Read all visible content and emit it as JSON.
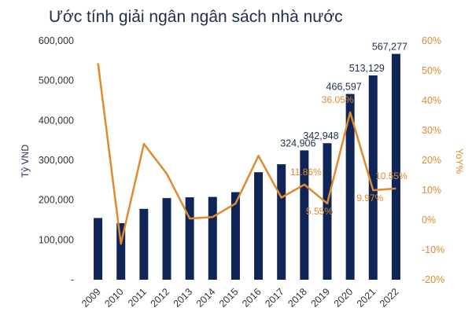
{
  "chart_data": {
    "type": "bar",
    "title": "Ước tính giải ngân ngân sách nhà nước",
    "categories": [
      "2009",
      "2010",
      "2011",
      "2012",
      "2013",
      "2014",
      "2015",
      "2016",
      "2017",
      "2018",
      "2019",
      "2020",
      "2021",
      "2022"
    ],
    "series": [
      {
        "name": "Tỷ VND",
        "type": "bar",
        "axis": "left",
        "color": "#0f2457",
        "values": [
          155000,
          142000,
          178000,
          205000,
          207000,
          208000,
          220000,
          270000,
          290000,
          324906,
          342948,
          466597,
          513129,
          567277
        ]
      },
      {
        "name": "YoY%",
        "type": "line",
        "axis": "right",
        "color": "#e08a2e",
        "values": [
          52.5,
          -8.0,
          25.5,
          15.5,
          0.5,
          1.0,
          5.5,
          21.5,
          7.5,
          11.86,
          5.55,
          36.05,
          9.97,
          10.55
        ]
      }
    ],
    "bar_labels": [
      {
        "index": 9,
        "text": "324,906"
      },
      {
        "index": 10,
        "text": "342,948"
      },
      {
        "index": 11,
        "text": "466,597"
      },
      {
        "index": 12,
        "text": "513,129"
      },
      {
        "index": 13,
        "text": "567,277"
      }
    ],
    "pct_labels": [
      {
        "index": 9,
        "text": "11.86%"
      },
      {
        "index": 10,
        "text": "5.55%"
      },
      {
        "index": 11,
        "text": "36.05%"
      },
      {
        "index": 12,
        "text": "9.97%"
      },
      {
        "index": 13,
        "text": "10.55%"
      }
    ],
    "ylabel": "Tỷ VND",
    "y2label": "YoY%",
    "ylim": [
      0,
      600000
    ],
    "y2lim": [
      -20,
      60
    ],
    "y_ticks": [
      "-",
      "100,000",
      "200,000",
      "300,000",
      "400,000",
      "500,000",
      "600,000"
    ],
    "y2_ticks": [
      "-20%",
      "-10%",
      "0%",
      "10%",
      "20%",
      "30%",
      "40%",
      "50%",
      "60%"
    ],
    "grid": false,
    "legend": "none"
  }
}
